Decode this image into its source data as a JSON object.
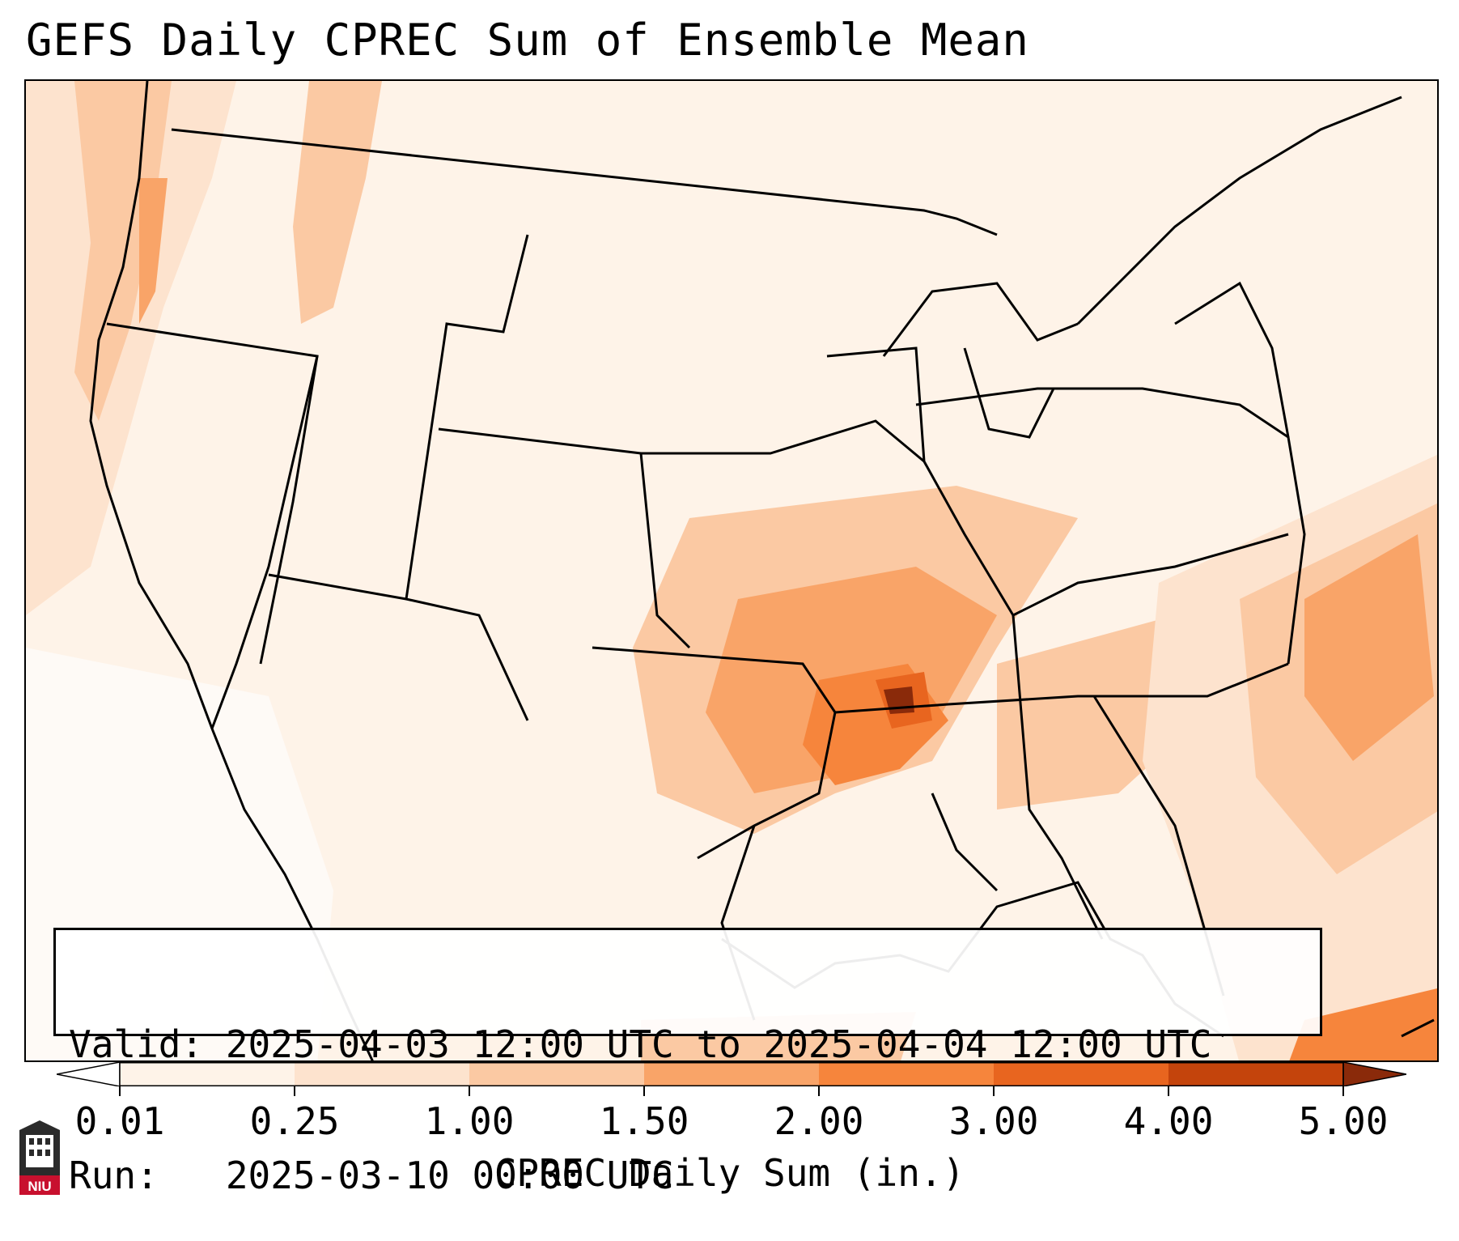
{
  "title": "GEFS Daily CPREC Sum of Ensemble Mean",
  "info": {
    "valid_line": "Valid: 2025-04-03 12:00 UTC to 2025-04-04 12:00 UTC",
    "run_line": "Run:   2025-03-10 00:00 UTC"
  },
  "colorbar": {
    "label": "CPREC Daily Sum (in.)",
    "ticks": [
      "0.01",
      "0.25",
      "1.00",
      "1.50",
      "2.00",
      "3.00",
      "4.00",
      "5.00"
    ],
    "colors": [
      "#fef3e8",
      "#fde3ce",
      "#fbc9a3",
      "#f9a468",
      "#f6853c",
      "#e8651f",
      "#c4440c",
      "#8a2a0a"
    ],
    "extend": "both"
  },
  "logo": {
    "text": "NIU",
    "color": "#c8102e"
  }
}
